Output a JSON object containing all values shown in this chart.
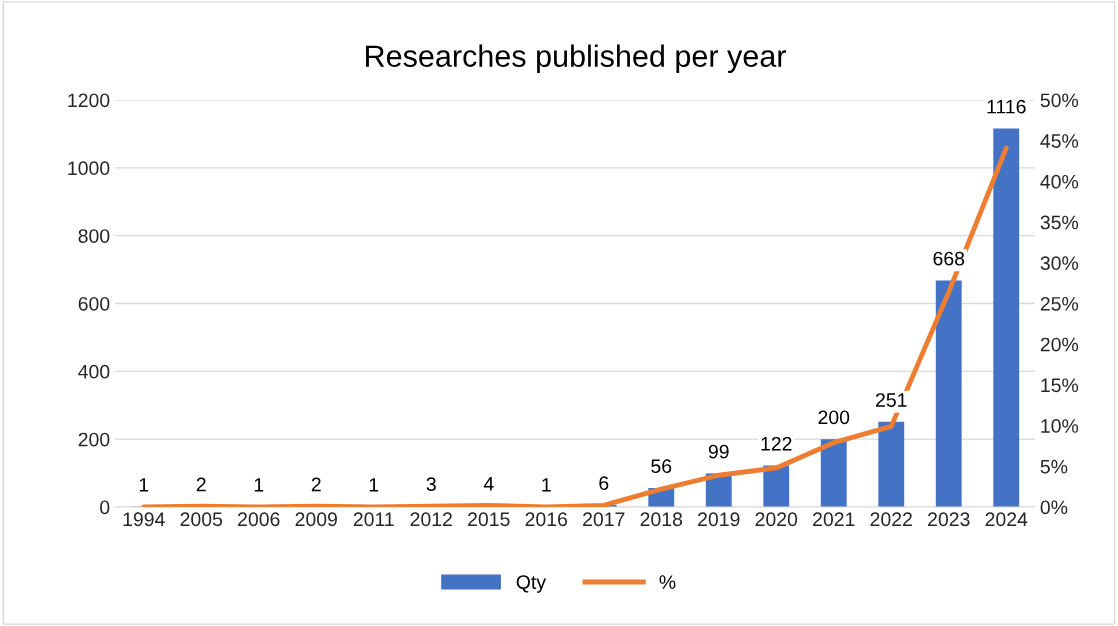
{
  "chart_data": {
    "type": "bar",
    "title": "Researches published per year",
    "categories": [
      "1994",
      "2005",
      "2006",
      "2009",
      "2011",
      "2012",
      "2015",
      "2016",
      "2017",
      "2018",
      "2019",
      "2020",
      "2021",
      "2022",
      "2023",
      "2024"
    ],
    "series": [
      {
        "name": "Qty",
        "color": "#4472c4",
        "values": [
          1,
          2,
          1,
          2,
          1,
          3,
          4,
          1,
          6,
          56,
          99,
          122,
          200,
          251,
          668,
          1116
        ],
        "value_labels": [
          "1",
          "2",
          "1",
          "2",
          "1",
          "3",
          "4",
          "1",
          "6",
          "56",
          "99",
          "122",
          "200",
          "251",
          "668",
          "1116"
        ]
      },
      {
        "name": "%",
        "type": "line",
        "axis": "y2",
        "color": "#ed7d31",
        "values": [
          0,
          0.1,
          0,
          0.1,
          0,
          0.1,
          0.2,
          0,
          0.2,
          2.2,
          3.9,
          4.8,
          7.9,
          9.9,
          26.4,
          44.1
        ]
      }
    ],
    "ylim": [
      0,
      1200
    ],
    "yticks": [
      0,
      200,
      400,
      600,
      800,
      1000,
      1200
    ],
    "y2lim": [
      0,
      50
    ],
    "y2ticks": [
      {
        "value": 0,
        "label": "0%"
      },
      {
        "value": 5,
        "label": "5%"
      },
      {
        "value": 10,
        "label": "10%"
      },
      {
        "value": 15,
        "label": "15%"
      },
      {
        "value": 20,
        "label": "20%"
      },
      {
        "value": 25,
        "label": "25%"
      },
      {
        "value": 30,
        "label": "30%"
      },
      {
        "value": 35,
        "label": "35%"
      },
      {
        "value": 40,
        "label": "40%"
      },
      {
        "value": 45,
        "label": "45%"
      },
      {
        "value": 50,
        "label": "50%"
      }
    ],
    "grid": "y",
    "legend": "bottom",
    "marker": "none",
    "line_style": "solid"
  }
}
